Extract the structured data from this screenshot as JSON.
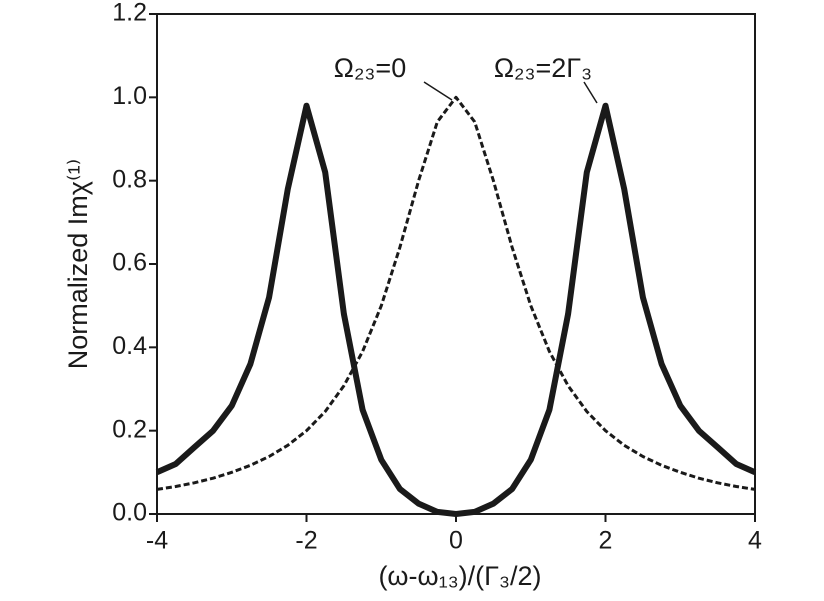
{
  "chart_data": {
    "type": "line",
    "x_label": "(ω-ω₁₃)/(Γ₃/2)",
    "y_label": "Normalized Imχ⁽¹⁾",
    "x": [
      -4,
      -3.75,
      -3.5,
      -3.25,
      -3,
      -2.75,
      -2.5,
      -2.25,
      -2,
      -1.75,
      -1.5,
      -1.25,
      -1,
      -0.75,
      -0.5,
      -0.25,
      0,
      0.25,
      0.5,
      0.75,
      1,
      1.25,
      1.5,
      1.75,
      2,
      2.25,
      2.5,
      2.75,
      3,
      3.25,
      3.5,
      3.75,
      4
    ],
    "series": [
      {
        "name": "Ω₂₃=2Γ₃",
        "color": "#1a1a1a",
        "line_style": "solid",
        "values": [
          0.1,
          0.12,
          0.16,
          0.2,
          0.26,
          0.36,
          0.52,
          0.78,
          0.98,
          0.82,
          0.48,
          0.25,
          0.13,
          0.06,
          0.025,
          0.005,
          0,
          0.005,
          0.025,
          0.06,
          0.13,
          0.25,
          0.48,
          0.82,
          0.98,
          0.78,
          0.52,
          0.36,
          0.26,
          0.2,
          0.16,
          0.12,
          0.1
        ]
      },
      {
        "name": "Ω₂₃=0",
        "color": "#1a1a1a",
        "line_style": "dashed",
        "values": [
          0.059,
          0.066,
          0.075,
          0.086,
          0.1,
          0.117,
          0.138,
          0.165,
          0.2,
          0.246,
          0.308,
          0.39,
          0.5,
          0.64,
          0.8,
          0.941,
          1,
          0.941,
          0.8,
          0.64,
          0.5,
          0.39,
          0.308,
          0.246,
          0.2,
          0.165,
          0.138,
          0.117,
          0.1,
          0.086,
          0.075,
          0.066,
          0.059
        ]
      }
    ],
    "xlim": [
      -4,
      4
    ],
    "ylim": [
      0,
      1.2
    ],
    "xticks": [
      -4,
      -2,
      0,
      2,
      4
    ],
    "yticks": [
      {
        "value": 0,
        "label": "0.0"
      },
      0.2,
      0.4,
      0.6,
      0.8,
      {
        "value": 1,
        "label": "1.0"
      },
      1.2
    ]
  }
}
